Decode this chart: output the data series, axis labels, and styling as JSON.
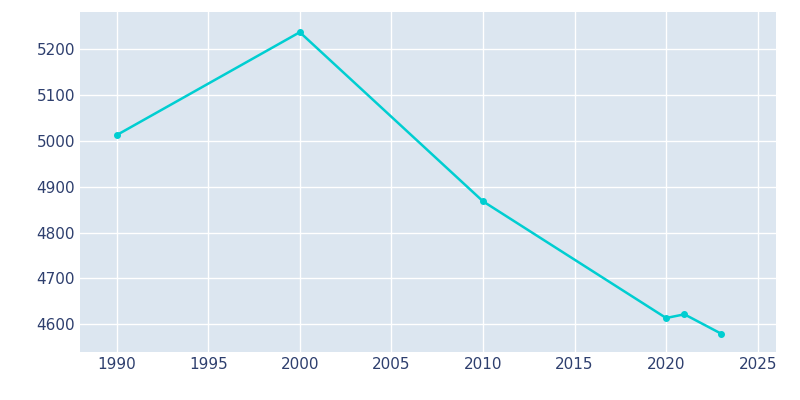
{
  "years": [
    1990,
    2000,
    2010,
    2020,
    2021,
    2023
  ],
  "population": [
    5012,
    5236,
    4868,
    4614,
    4622,
    4580
  ],
  "line_color": "#00CED1",
  "marker_color": "#00CED1",
  "background_color": "#dce6f0",
  "outer_background": "#ffffff",
  "grid_color": "#ffffff",
  "text_color": "#2e3f6e",
  "xlim": [
    1988,
    2026
  ],
  "ylim": [
    4540,
    5280
  ],
  "yticks": [
    4600,
    4700,
    4800,
    4900,
    5000,
    5100,
    5200
  ],
  "xticks": [
    1990,
    1995,
    2000,
    2005,
    2010,
    2015,
    2020,
    2025
  ],
  "marker_size": 4,
  "line_width": 1.8
}
